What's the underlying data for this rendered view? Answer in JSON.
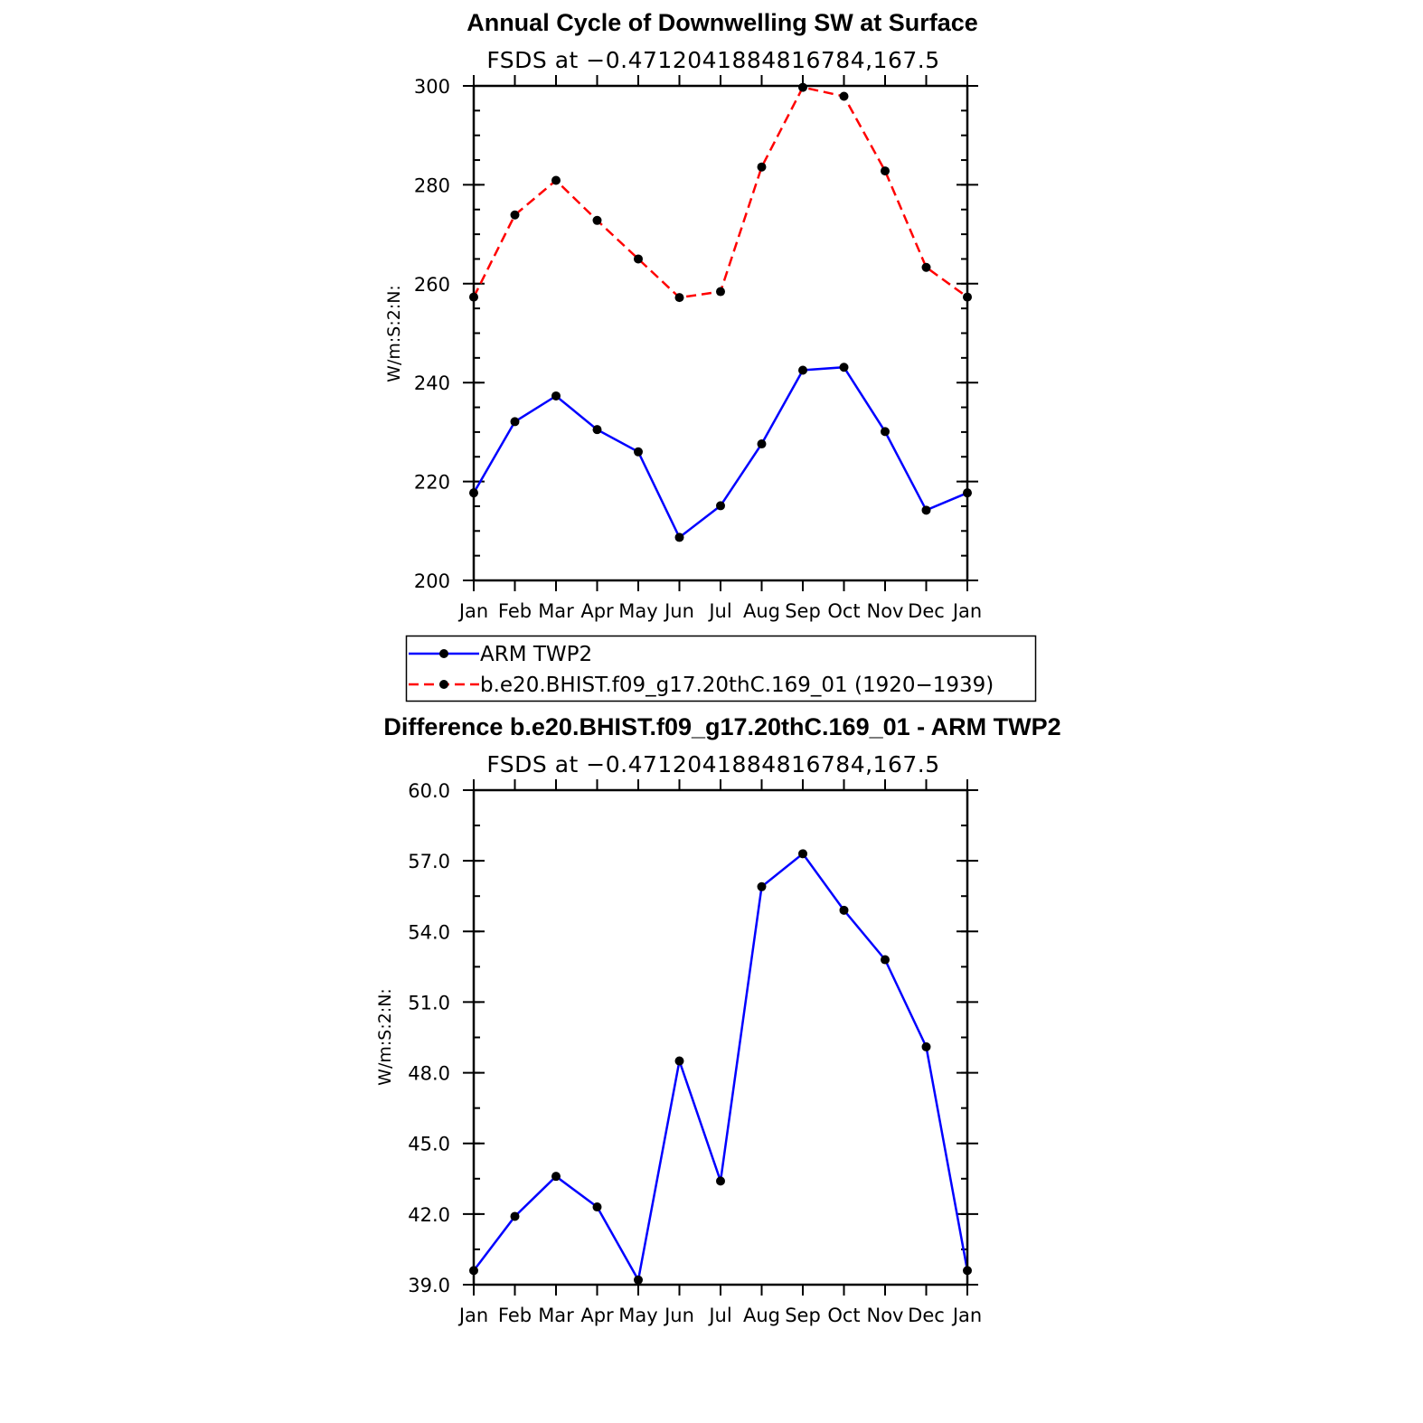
{
  "chart_data": [
    {
      "type": "line",
      "title": "Annual Cycle of Downwelling SW at Surface",
      "subtitle": "FSDS at −0.4712041884816784,167.5",
      "ylabel": "W/m:S:2:N:",
      "xlabel": "",
      "categories": [
        "Jan",
        "Feb",
        "Mar",
        "Apr",
        "May",
        "Jun",
        "Jul",
        "Aug",
        "Sep",
        "Oct",
        "Nov",
        "Dec",
        "Jan"
      ],
      "ylim": [
        200,
        300
      ],
      "yticks": [
        "200",
        "220",
        "240",
        "260",
        "280",
        "300"
      ],
      "ytick_values": [
        200,
        220,
        240,
        260,
        280,
        300
      ],
      "grid": false,
      "legend_position": "below",
      "series": [
        {
          "name": "ARM TWP2",
          "color": "#0000ff",
          "style": "solid",
          "values": [
            217.7,
            232.1,
            237.3,
            230.5,
            226.0,
            208.7,
            215.1,
            227.6,
            242.5,
            243.1,
            230.1,
            214.2,
            217.7
          ]
        },
        {
          "name": "b.e20.BHIST.f09_g17.20thC.169_01 (1920−1939)",
          "color": "#ff0000",
          "style": "dashed",
          "values": [
            257.3,
            273.9,
            280.9,
            272.8,
            265.0,
            257.2,
            258.4,
            283.6,
            299.7,
            297.9,
            282.8,
            263.3,
            257.3
          ]
        }
      ]
    },
    {
      "type": "line",
      "title": "Difference b.e20.BHIST.f09_g17.20thC.169_01 - ARM TWP2",
      "subtitle": "FSDS at −0.4712041884816784,167.5",
      "ylabel": "W/m:S:2:N:",
      "xlabel": "",
      "categories": [
        "Jan",
        "Feb",
        "Mar",
        "Apr",
        "May",
        "Jun",
        "Jul",
        "Aug",
        "Sep",
        "Oct",
        "Nov",
        "Dec",
        "Jan"
      ],
      "ylim": [
        39.0,
        60.0
      ],
      "yticks": [
        "39.0",
        "42.0",
        "45.0",
        "48.0",
        "51.0",
        "54.0",
        "57.0",
        "60.0"
      ],
      "ytick_values": [
        39,
        42,
        45,
        48,
        51,
        54,
        57,
        60
      ],
      "grid": false,
      "series": [
        {
          "color": "#0000ff",
          "style": "solid",
          "values": [
            39.6,
            41.9,
            43.6,
            42.3,
            39.2,
            48.5,
            43.4,
            55.9,
            57.3,
            54.9,
            52.8,
            49.1,
            39.6
          ]
        }
      ]
    }
  ],
  "legend": {
    "items": [
      {
        "label": "ARM TWP2",
        "color": "#0000ff",
        "style": "solid"
      },
      {
        "label": "b.e20.BHIST.f09_g17.20thC.169_01 (1920−1939)",
        "color": "#ff0000",
        "style": "dashed"
      }
    ]
  }
}
